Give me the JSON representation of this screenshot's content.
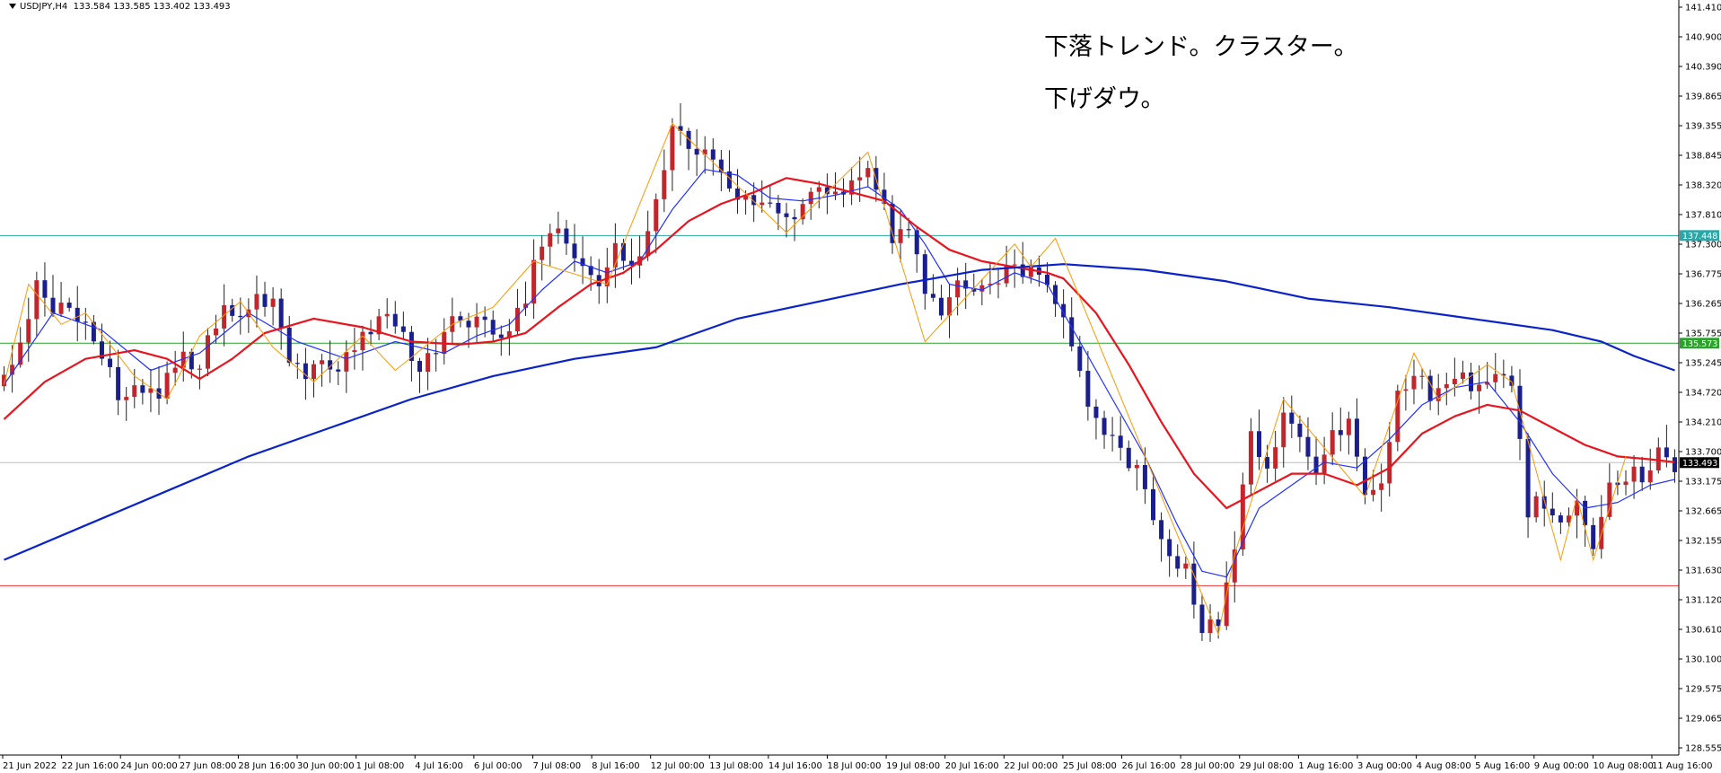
{
  "header": {
    "symbol": "USDJPY,H4",
    "open": "133.584",
    "high": "133.585",
    "low": "133.402",
    "close": "133.493"
  },
  "notes": [
    "下落トレンド。クラスター。",
    "下げダウ。"
  ],
  "colors": {
    "bull": "#c0272d",
    "bear": "#1a1f8a",
    "ma_fast": "#2130ff",
    "ma_mid": "#e8141e",
    "ma_slow": "#0a23c8",
    "zigzag": "#ff9900",
    "hline_cyan": "#2aa7a9",
    "hline_green": "#2aa32a",
    "hline_red": "#ef3737",
    "hline_grey": "#bdbdbd",
    "axis": "#000000"
  },
  "chart_data": {
    "type": "candlestick",
    "symbol": "USDJPY",
    "timeframe": "H4",
    "ylim": [
      128.4,
      141.55
    ],
    "y_ticks": [
      "141.410",
      "140.900",
      "140.390",
      "139.865",
      "139.355",
      "138.845",
      "138.320",
      "137.810",
      "137.300",
      "136.775",
      "136.265",
      "135.755",
      "135.245",
      "134.720",
      "134.210",
      "133.700",
      "133.175",
      "132.665",
      "132.155",
      "131.630",
      "131.120",
      "130.610",
      "130.100",
      "129.575",
      "129.065",
      "128.555"
    ],
    "x_ticks": [
      "21 Jun 2022",
      "22 Jun 16:00",
      "24 Jun 00:00",
      "27 Jun 08:00",
      "28 Jun 16:00",
      "30 Jun 00:00",
      "1 Jul 08:00",
      "4 Jul 16:00",
      "6 Jul 00:00",
      "7 Jul 08:00",
      "8 Jul 16:00",
      "12 Jul 00:00",
      "13 Jul 08:00",
      "14 Jul 16:00",
      "18 Jul 00:00",
      "19 Jul 08:00",
      "20 Jul 16:00",
      "22 Jul 00:00",
      "25 Jul 08:00",
      "26 Jul 16:00",
      "28 Jul 00:00",
      "29 Jul 08:00",
      "1 Aug 16:00",
      "3 Aug 00:00",
      "4 Aug 08:00",
      "5 Aug 16:00",
      "9 Aug 00:00",
      "10 Aug 08:00",
      "11 Aug 16:00"
    ],
    "price_markers": [
      {
        "label": "137.448",
        "value": 137.448,
        "color": "#2aa7a9"
      },
      {
        "label": "135.573",
        "value": 135.573,
        "color": "#2aa32a"
      },
      {
        "label": "133.493",
        "value": 133.493,
        "color": "#000000"
      }
    ],
    "horizontal_lines": [
      {
        "value": 137.448,
        "color": "#2aa7a9"
      },
      {
        "value": 135.573,
        "color": "#2aa32a"
      },
      {
        "value": 133.493,
        "color": "#bdbdbd"
      },
      {
        "value": 131.35,
        "color": "#ef3737"
      }
    ],
    "close_anchors": [
      [
        0,
        134.9
      ],
      [
        2,
        135.7
      ],
      [
        4,
        136.5
      ],
      [
        6,
        136.1
      ],
      [
        8,
        136.3
      ],
      [
        10,
        135.9
      ],
      [
        12,
        135.3
      ],
      [
        14,
        134.7
      ],
      [
        16,
        134.9
      ],
      [
        19,
        134.6
      ],
      [
        20,
        135.0
      ],
      [
        22,
        135.3
      ],
      [
        24,
        135.1
      ],
      [
        25,
        135.6
      ],
      [
        27,
        136.2
      ],
      [
        29,
        136.1
      ],
      [
        31,
        136.5
      ],
      [
        33,
        136.2
      ],
      [
        35,
        135.4
      ],
      [
        37,
        134.9
      ],
      [
        39,
        135.3
      ],
      [
        41,
        135.0
      ],
      [
        43,
        135.5
      ],
      [
        45,
        135.8
      ],
      [
        47,
        136.1
      ],
      [
        49,
        135.6
      ],
      [
        51,
        135.2
      ],
      [
        53,
        135.3
      ],
      [
        55,
        135.9
      ],
      [
        57,
        135.8
      ],
      [
        59,
        136.1
      ],
      [
        60,
        135.6
      ],
      [
        62,
        135.9
      ],
      [
        64,
        136.3
      ],
      [
        65,
        137.0
      ],
      [
        67,
        137.6
      ],
      [
        69,
        137.3
      ],
      [
        71,
        137.0
      ],
      [
        73,
        136.6
      ],
      [
        75,
        137.2
      ],
      [
        77,
        137.0
      ],
      [
        79,
        137.4
      ],
      [
        80,
        138.1
      ],
      [
        82,
        139.3
      ],
      [
        84,
        139.0
      ],
      [
        86,
        138.9
      ],
      [
        88,
        138.6
      ],
      [
        90,
        138.2
      ],
      [
        92,
        138.0
      ],
      [
        94,
        138.1
      ],
      [
        96,
        137.7
      ],
      [
        98,
        138.1
      ],
      [
        100,
        138.2
      ],
      [
        102,
        138.1
      ],
      [
        104,
        138.5
      ],
      [
        106,
        138.6
      ],
      [
        108,
        138.0
      ],
      [
        109,
        137.3
      ],
      [
        111,
        137.7
      ],
      [
        113,
        136.6
      ],
      [
        115,
        136.0
      ],
      [
        117,
        136.7
      ],
      [
        119,
        136.4
      ],
      [
        121,
        136.6
      ],
      [
        123,
        136.8
      ],
      [
        125,
        136.9
      ],
      [
        127,
        136.7
      ],
      [
        129,
        136.3
      ],
      [
        131,
        135.4
      ],
      [
        133,
        134.5
      ],
      [
        135,
        133.9
      ],
      [
        137,
        133.7
      ],
      [
        139,
        133.3
      ],
      [
        141,
        132.6
      ],
      [
        143,
        132.0
      ],
      [
        145,
        131.6
      ],
      [
        147,
        130.6
      ],
      [
        149,
        130.7
      ],
      [
        151,
        132.0
      ],
      [
        153,
        133.9
      ],
      [
        155,
        133.3
      ],
      [
        157,
        134.3
      ],
      [
        159,
        133.9
      ],
      [
        161,
        133.3
      ],
      [
        163,
        133.9
      ],
      [
        165,
        134.2
      ],
      [
        167,
        133.1
      ],
      [
        169,
        133.2
      ],
      [
        171,
        134.8
      ],
      [
        173,
        135.0
      ],
      [
        175,
        134.7
      ],
      [
        177,
        134.7
      ],
      [
        179,
        134.9
      ],
      [
        181,
        134.9
      ],
      [
        183,
        135.0
      ],
      [
        185,
        134.8
      ],
      [
        187,
        132.7
      ],
      [
        189,
        132.8
      ],
      [
        191,
        132.5
      ],
      [
        193,
        132.7
      ],
      [
        195,
        132.1
      ],
      [
        197,
        133.1
      ],
      [
        199,
        133.2
      ],
      [
        201,
        133.3
      ],
      [
        203,
        133.7
      ],
      [
        205,
        133.5
      ]
    ],
    "moving_averages": [
      {
        "name": "fast",
        "color": "#2130ff",
        "points": [
          [
            0,
            134.85
          ],
          [
            6,
            136.1
          ],
          [
            12,
            135.8
          ],
          [
            18,
            135.1
          ],
          [
            24,
            135.4
          ],
          [
            30,
            136.1
          ],
          [
            36,
            135.6
          ],
          [
            42,
            135.3
          ],
          [
            48,
            135.6
          ],
          [
            54,
            135.4
          ],
          [
            58,
            135.7
          ],
          [
            62,
            135.9
          ],
          [
            66,
            136.5
          ],
          [
            70,
            137.0
          ],
          [
            74,
            136.8
          ],
          [
            78,
            137.0
          ],
          [
            82,
            137.9
          ],
          [
            86,
            138.6
          ],
          [
            90,
            138.5
          ],
          [
            94,
            138.1
          ],
          [
            98,
            138.05
          ],
          [
            102,
            138.15
          ],
          [
            106,
            138.3
          ],
          [
            110,
            137.9
          ],
          [
            113,
            137.3
          ],
          [
            116,
            136.6
          ],
          [
            120,
            136.5
          ],
          [
            124,
            136.8
          ],
          [
            128,
            136.6
          ],
          [
            132,
            135.6
          ],
          [
            136,
            134.6
          ],
          [
            140,
            133.6
          ],
          [
            144,
            132.4
          ],
          [
            147,
            131.6
          ],
          [
            150,
            131.5
          ],
          [
            154,
            132.7
          ],
          [
            158,
            133.1
          ],
          [
            162,
            133.5
          ],
          [
            166,
            133.4
          ],
          [
            170,
            133.9
          ],
          [
            174,
            134.5
          ],
          [
            178,
            134.8
          ],
          [
            182,
            134.9
          ],
          [
            186,
            134.2
          ],
          [
            190,
            133.3
          ],
          [
            194,
            132.7
          ],
          [
            198,
            132.8
          ],
          [
            202,
            133.1
          ],
          [
            205,
            133.2
          ]
        ]
      },
      {
        "name": "mid",
        "color": "#e8141e",
        "points": [
          [
            0,
            134.25
          ],
          [
            5,
            134.9
          ],
          [
            10,
            135.3
          ],
          [
            16,
            135.45
          ],
          [
            20,
            135.3
          ],
          [
            24,
            134.95
          ],
          [
            28,
            135.3
          ],
          [
            32,
            135.75
          ],
          [
            38,
            136.0
          ],
          [
            44,
            135.85
          ],
          [
            50,
            135.6
          ],
          [
            56,
            135.55
          ],
          [
            60,
            135.6
          ],
          [
            64,
            135.75
          ],
          [
            68,
            136.2
          ],
          [
            72,
            136.6
          ],
          [
            76,
            136.8
          ],
          [
            80,
            137.2
          ],
          [
            84,
            137.7
          ],
          [
            88,
            138.0
          ],
          [
            92,
            138.2
          ],
          [
            96,
            138.45
          ],
          [
            100,
            138.35
          ],
          [
            104,
            138.2
          ],
          [
            108,
            138.05
          ],
          [
            112,
            137.6
          ],
          [
            116,
            137.2
          ],
          [
            120,
            137.0
          ],
          [
            124,
            136.9
          ],
          [
            128,
            136.8
          ],
          [
            130,
            136.7
          ],
          [
            134,
            136.1
          ],
          [
            138,
            135.2
          ],
          [
            142,
            134.2
          ],
          [
            146,
            133.3
          ],
          [
            150,
            132.7
          ],
          [
            154,
            133.0
          ],
          [
            158,
            133.3
          ],
          [
            162,
            133.3
          ],
          [
            166,
            133.1
          ],
          [
            170,
            133.4
          ],
          [
            174,
            134.0
          ],
          [
            178,
            134.3
          ],
          [
            182,
            134.5
          ],
          [
            186,
            134.4
          ],
          [
            190,
            134.1
          ],
          [
            194,
            133.8
          ],
          [
            198,
            133.6
          ],
          [
            202,
            133.55
          ],
          [
            205,
            133.5
          ]
        ]
      },
      {
        "name": "slow",
        "color": "#0a23c8",
        "points": [
          [
            0,
            131.8
          ],
          [
            10,
            132.4
          ],
          [
            20,
            133.0
          ],
          [
            30,
            133.6
          ],
          [
            40,
            134.1
          ],
          [
            50,
            134.6
          ],
          [
            60,
            135.0
          ],
          [
            70,
            135.3
          ],
          [
            80,
            135.5
          ],
          [
            90,
            136.0
          ],
          [
            100,
            136.3
          ],
          [
            110,
            136.6
          ],
          [
            120,
            136.85
          ],
          [
            130,
            136.95
          ],
          [
            140,
            136.85
          ],
          [
            150,
            136.65
          ],
          [
            160,
            136.35
          ],
          [
            170,
            136.2
          ],
          [
            180,
            136.0
          ],
          [
            190,
            135.8
          ],
          [
            196,
            135.6
          ],
          [
            200,
            135.35
          ],
          [
            205,
            135.1
          ]
        ]
      }
    ],
    "zigzag": [
      [
        0,
        134.85
      ],
      [
        3,
        136.6
      ],
      [
        7,
        135.9
      ],
      [
        10,
        136.1
      ],
      [
        16,
        135.0
      ],
      [
        20,
        134.6
      ],
      [
        24,
        135.7
      ],
      [
        29,
        136.3
      ],
      [
        33,
        135.5
      ],
      [
        38,
        134.9
      ],
      [
        44,
        135.7
      ],
      [
        48,
        135.1
      ],
      [
        55,
        135.9
      ],
      [
        60,
        136.2
      ],
      [
        65,
        137.0
      ],
      [
        74,
        136.6
      ],
      [
        82,
        139.4
      ],
      [
        96,
        137.5
      ],
      [
        106,
        138.9
      ],
      [
        113,
        135.6
      ],
      [
        124,
        137.3
      ],
      [
        126,
        136.9
      ],
      [
        129,
        137.4
      ],
      [
        149,
        130.5
      ],
      [
        151,
        131.9
      ],
      [
        157,
        134.6
      ],
      [
        167,
        132.9
      ],
      [
        173,
        135.4
      ],
      [
        176,
        134.6
      ],
      [
        182,
        135.2
      ],
      [
        185,
        134.9
      ],
      [
        191,
        131.8
      ],
      [
        193,
        132.9
      ],
      [
        195,
        131.8
      ],
      [
        199,
        133.6
      ]
    ]
  }
}
